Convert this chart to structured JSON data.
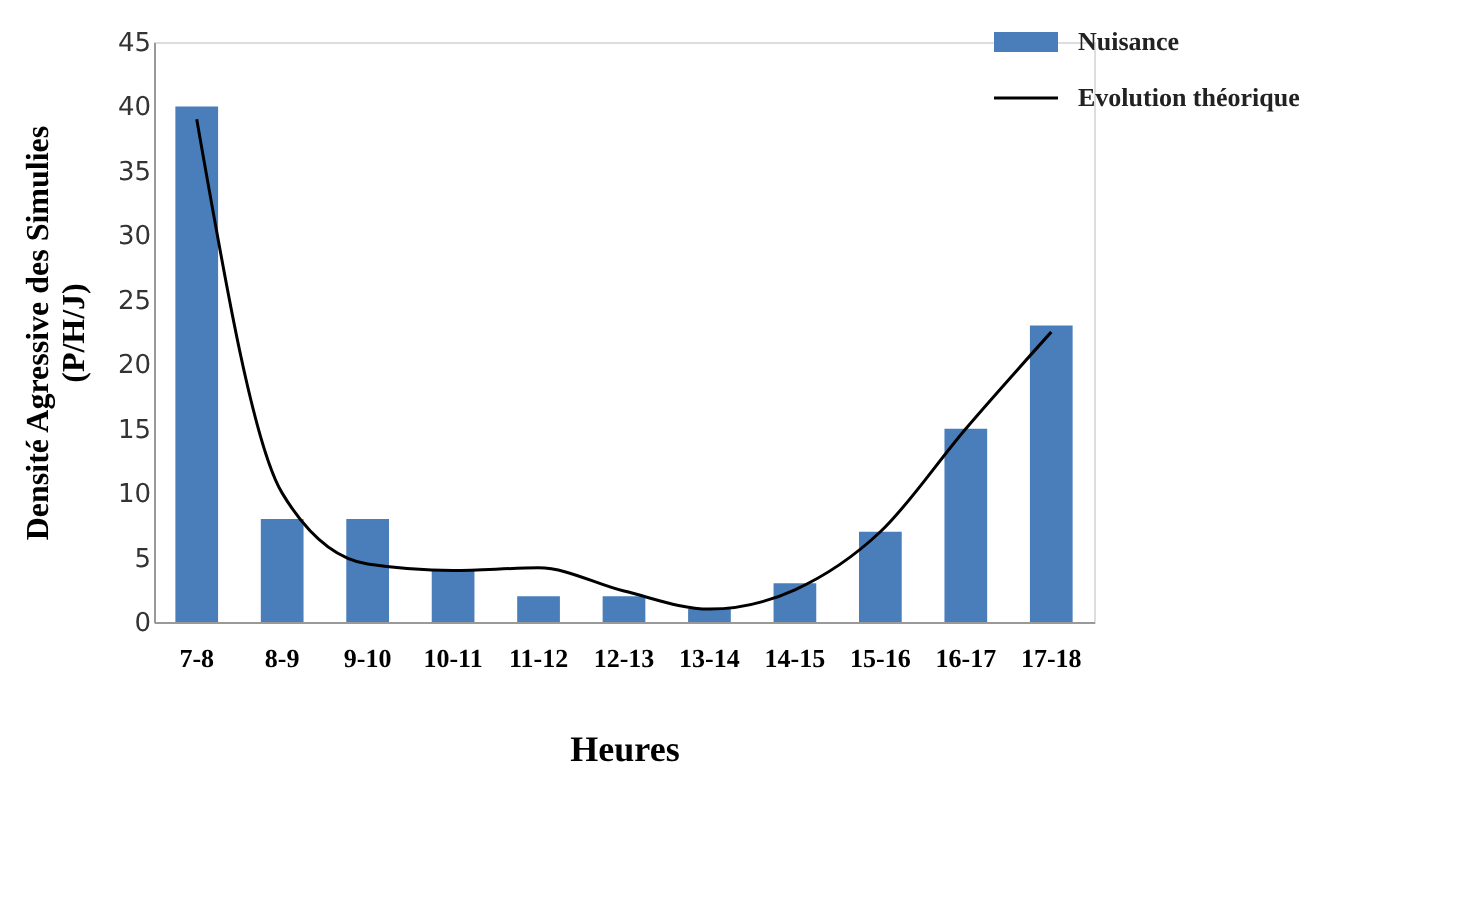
{
  "chart_data": {
    "type": "bar",
    "xlabel": "Heures",
    "ylabel": "Densité Agressive des Simulies (P/H/J)",
    "categories": [
      "7-8",
      "8-9",
      "9-10",
      "10-11",
      "11-12",
      "12-13",
      "13-14",
      "14-15",
      "15-16",
      "16-17",
      "17-18"
    ],
    "series": [
      {
        "name": "Nuisance",
        "type": "bar",
        "color": "#4a7ebb",
        "values": [
          40,
          8,
          8,
          4,
          2,
          2,
          1,
          3,
          7,
          15,
          23
        ]
      },
      {
        "name": "Evolution théorique",
        "type": "line",
        "color": "#000000",
        "values": [
          39,
          10,
          4.5,
          4,
          4.2,
          2.4,
          1,
          2.5,
          7,
          15,
          22.5
        ]
      }
    ],
    "ylim": [
      0,
      45
    ],
    "yticks": [
      0,
      5,
      10,
      15,
      20,
      25,
      30,
      35,
      40,
      45
    ],
    "grid": false,
    "legend": "top right"
  }
}
